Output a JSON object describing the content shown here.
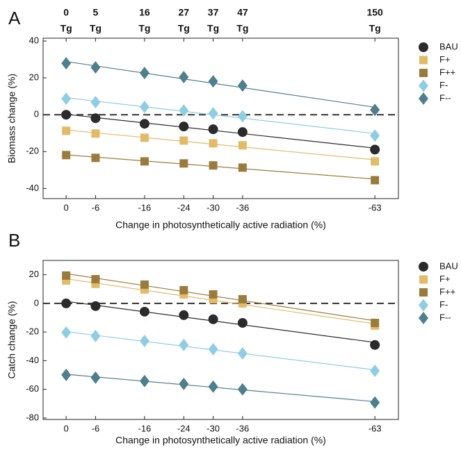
{
  "chart_data": [
    {
      "type": "scatter",
      "panel": "A",
      "xlabel": "Change in photosynthetically active radiation (%)",
      "ylabel": "Biomass change (%)",
      "x": [
        0,
        -6,
        -16,
        -24,
        -30,
        -36,
        -63
      ],
      "xlim": [
        4.7,
        -67.8
      ],
      "xticks": [
        0,
        -6,
        -16,
        -24,
        -30,
        -36,
        -63
      ],
      "x2ticks": [
        "0",
        "5",
        "16",
        "27",
        "37",
        "47",
        "150"
      ],
      "x2unit": "Tg",
      "ylim": [
        -45.5,
        41.5
      ],
      "yticks": [
        40,
        20,
        0,
        -20,
        -40
      ],
      "zero_line": true,
      "trend_lines": true,
      "legend": "right",
      "series": [
        {
          "name": "BAU",
          "color": "#2b2b2b",
          "marker": "circle",
          "values": [
            0,
            -1.9,
            -4.9,
            -6.4,
            -7.9,
            -9.4,
            -18.9
          ]
        },
        {
          "name": "F+",
          "color": "#e2bb68",
          "marker": "square",
          "values": [
            -8.7,
            -10.2,
            -12.5,
            -14,
            -15.5,
            -16.6,
            -25.3
          ]
        },
        {
          "name": "F++",
          "color": "#9b7b3c",
          "marker": "square",
          "values": [
            -21.9,
            -23.4,
            -25.3,
            -26.4,
            -27.5,
            -28.7,
            -35.5
          ]
        },
        {
          "name": "F-",
          "color": "#8fcde2",
          "marker": "diamond",
          "values": [
            8.7,
            6.8,
            4.2,
            2.3,
            0.8,
            -0.8,
            -11.3
          ]
        },
        {
          "name": "F--",
          "color": "#4f7e8d",
          "marker": "diamond",
          "values": [
            27.9,
            25.7,
            22.6,
            20.4,
            18.1,
            15.8,
            2.6
          ]
        }
      ]
    },
    {
      "type": "scatter",
      "panel": "B",
      "xlabel": "Change in photosynthetically active radiation (%)",
      "ylabel": "Catch change (%)",
      "x": [
        0,
        -6,
        -16,
        -24,
        -30,
        -36,
        -63
      ],
      "xlim": [
        4.7,
        -67.8
      ],
      "xticks": [
        0,
        -6,
        -16,
        -24,
        -30,
        -36,
        -63
      ],
      "ylim": [
        -81,
        30
      ],
      "yticks": [
        20,
        0,
        -20,
        -40,
        -60,
        -80
      ],
      "zero_line": true,
      "trend_lines": true,
      "legend": "right",
      "series": [
        {
          "name": "BAU",
          "color": "#2b2b2b",
          "marker": "circle",
          "values": [
            0,
            -1.9,
            -5.8,
            -8.2,
            -11.1,
            -13.6,
            -29
          ]
        },
        {
          "name": "F+",
          "color": "#e2bb68",
          "marker": "square",
          "values": [
            16,
            13.6,
            9.7,
            6.3,
            2.9,
            0,
            -15.5
          ]
        },
        {
          "name": "F++",
          "color": "#9b7b3c",
          "marker": "square",
          "values": [
            19.4,
            16.9,
            13.1,
            9.2,
            6.3,
            2.9,
            -13.6
          ]
        },
        {
          "name": "F-",
          "color": "#8fcde2",
          "marker": "diamond",
          "values": [
            -20.3,
            -22.8,
            -26.2,
            -29,
            -32,
            -34.9,
            -47
          ]
        },
        {
          "name": "F--",
          "color": "#4f7e8d",
          "marker": "diamond",
          "values": [
            -49.9,
            -51.8,
            -54.2,
            -56.2,
            -58.1,
            -60,
            -69.2
          ]
        }
      ]
    }
  ]
}
